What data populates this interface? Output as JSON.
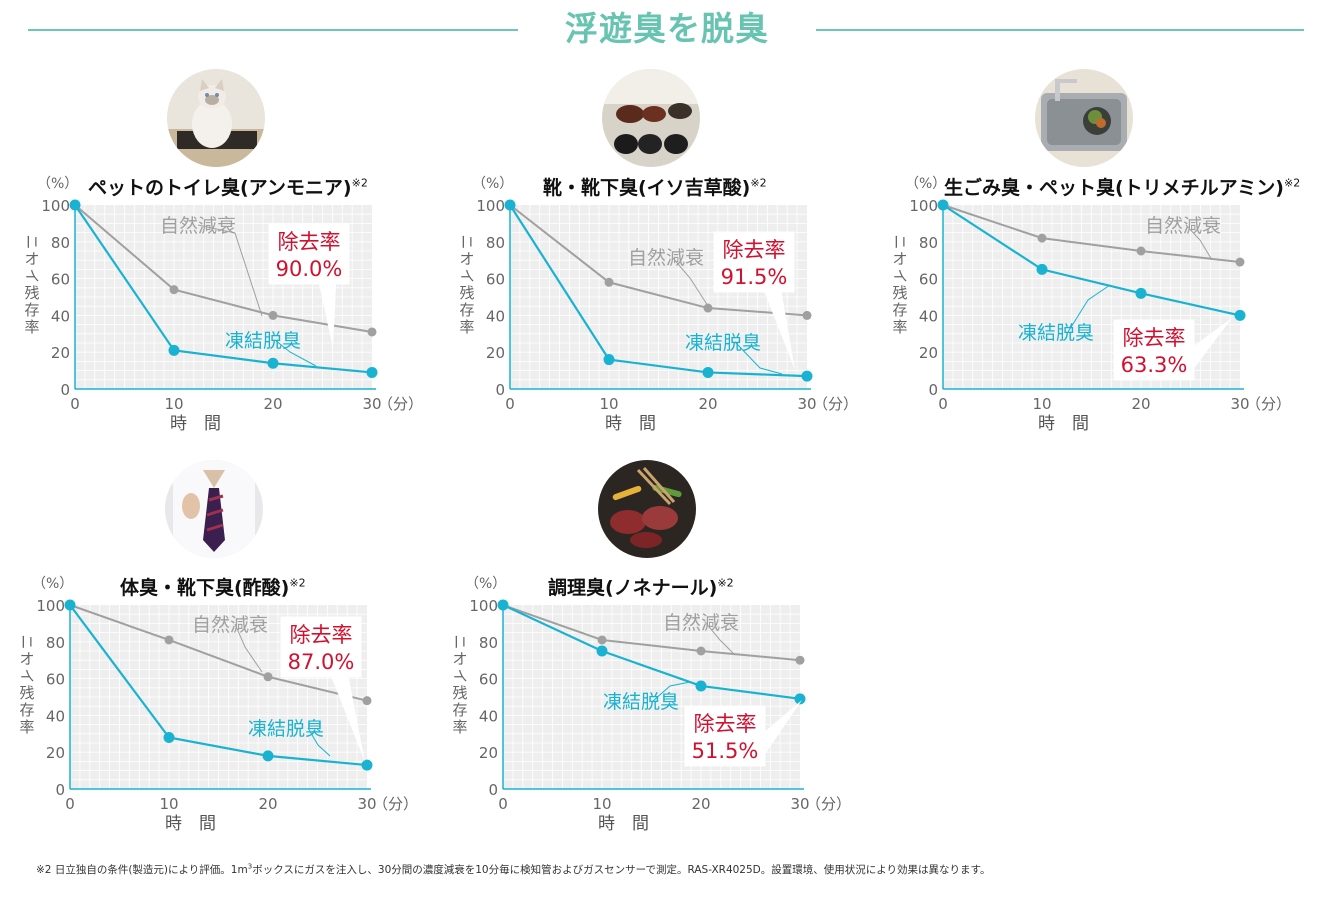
{
  "header": {
    "title": "浮遊臭を脱臭"
  },
  "footnote": {
    "mark": "※2",
    "text_before": "日立独自の条件(製造元)により評価。1m",
    "superscript": "3",
    "text_after": "ボックスにガスを注入し、30分間の濃度減衰を10分毎に検知管およびガスセンサーで測定。RAS-XR4025D。設置環境、使用状況により効果は異なります。"
  },
  "colors": {
    "accent": "#67c4b0",
    "frozen": "#19b3d1",
    "natural": "#a0a0a0",
    "removal": "#d2112f",
    "plot_bg": "#eeeeee"
  },
  "common": {
    "percent_unit": "（%）",
    "ylabel": "ニオイ残存率",
    "xlabel": "時　間",
    "minute_unit": "（分）",
    "natural_label": "自然減衰",
    "frozen_label": "凍結脱臭",
    "removal_label": "除去率",
    "footnote_mark": "※2"
  },
  "chart_data": [
    {
      "type": "line",
      "title": "ペットのトイレ臭(アンモニア)",
      "photo_icon": "cat-on-litter-mat-photo",
      "x": [
        0,
        10,
        20,
        30
      ],
      "xticks": [
        "0",
        "10",
        "20",
        "30"
      ],
      "yticks": [
        "0",
        "20",
        "40",
        "60",
        "80",
        "100"
      ],
      "xlim": [
        0,
        30
      ],
      "ylim": [
        0,
        100
      ],
      "series": [
        {
          "name": "自然減衰",
          "values": [
            100,
            54,
            40,
            31
          ]
        },
        {
          "name": "凍結脱臭",
          "values": [
            100,
            21,
            14,
            9
          ]
        }
      ],
      "removal_rate": "90.0%"
    },
    {
      "type": "line",
      "title": "靴・靴下臭(イソ吉草酸)",
      "photo_icon": "shoes-in-entryway-photo",
      "x": [
        0,
        10,
        20,
        30
      ],
      "xticks": [
        "0",
        "10",
        "20",
        "30"
      ],
      "yticks": [
        "0",
        "20",
        "40",
        "60",
        "80",
        "100"
      ],
      "xlim": [
        0,
        30
      ],
      "ylim": [
        0,
        100
      ],
      "series": [
        {
          "name": "自然減衰",
          "values": [
            100,
            58,
            44,
            40
          ]
        },
        {
          "name": "凍結脱臭",
          "values": [
            100,
            16,
            9,
            7
          ]
        }
      ],
      "removal_rate": "91.5%"
    },
    {
      "type": "line",
      "title": "生ごみ臭・ペット臭(トリメチルアミン)",
      "photo_icon": "kitchen-sink-garbage-photo",
      "x": [
        0,
        10,
        20,
        30
      ],
      "xticks": [
        "0",
        "10",
        "20",
        "30"
      ],
      "yticks": [
        "0",
        "20",
        "40",
        "60",
        "80",
        "100"
      ],
      "xlim": [
        0,
        30
      ],
      "ylim": [
        0,
        100
      ],
      "series": [
        {
          "name": "自然減衰",
          "values": [
            100,
            82,
            75,
            69
          ]
        },
        {
          "name": "凍結脱臭",
          "values": [
            100,
            65,
            52,
            40
          ]
        }
      ],
      "removal_rate": "63.3%"
    },
    {
      "type": "line",
      "title": "体臭・靴下臭(酢酸)",
      "photo_icon": "man-loosening-tie-photo",
      "x": [
        0,
        10,
        20,
        30
      ],
      "xticks": [
        "0",
        "10",
        "20",
        "30"
      ],
      "yticks": [
        "0",
        "20",
        "40",
        "60",
        "80",
        "100"
      ],
      "xlim": [
        0,
        30
      ],
      "ylim": [
        0,
        100
      ],
      "series": [
        {
          "name": "自然減衰",
          "values": [
            100,
            81,
            61,
            48
          ]
        },
        {
          "name": "凍結脱臭",
          "values": [
            100,
            28,
            18,
            13
          ]
        }
      ],
      "removal_rate": "87.0%"
    },
    {
      "type": "line",
      "title": "調理臭(ノネナール)",
      "photo_icon": "grilled-meat-photo",
      "x": [
        0,
        10,
        20,
        30
      ],
      "xticks": [
        "0",
        "10",
        "20",
        "30"
      ],
      "yticks": [
        "0",
        "20",
        "40",
        "60",
        "80",
        "100"
      ],
      "xlim": [
        0,
        30
      ],
      "ylim": [
        0,
        100
      ],
      "series": [
        {
          "name": "自然減衰",
          "values": [
            100,
            81,
            75,
            70
          ]
        },
        {
          "name": "凍結脱臭",
          "values": [
            100,
            75,
            56,
            49
          ]
        }
      ],
      "removal_rate": "51.5%"
    }
  ]
}
